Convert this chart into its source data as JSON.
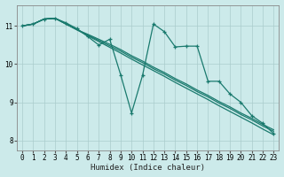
{
  "xlabel": "Humidex (Indice chaleur)",
  "background_color": "#cceaea",
  "grid_color": "#aacccc",
  "line_color": "#1a7a6e",
  "xlim": [
    -0.5,
    23.5
  ],
  "ylim": [
    7.75,
    11.55
  ],
  "yticks": [
    8,
    9,
    10,
    11
  ],
  "xticks": [
    0,
    1,
    2,
    3,
    4,
    5,
    6,
    7,
    8,
    9,
    10,
    11,
    12,
    13,
    14,
    15,
    16,
    17,
    18,
    19,
    20,
    21,
    22,
    23
  ],
  "smooth_lines": [
    {
      "x": [
        0,
        1,
        2,
        3,
        4,
        5,
        6,
        7,
        8,
        9,
        10,
        11,
        12,
        13,
        14,
        15,
        16,
        17,
        18,
        19,
        20,
        21,
        22,
        23
      ],
      "y": [
        11.0,
        11.05,
        11.18,
        11.2,
        11.05,
        10.9,
        10.78,
        10.65,
        10.52,
        10.38,
        10.22,
        10.08,
        9.92,
        9.78,
        9.62,
        9.48,
        9.32,
        9.18,
        9.02,
        8.88,
        8.72,
        8.58,
        8.42,
        8.28
      ]
    },
    {
      "x": [
        0,
        1,
        2,
        3,
        4,
        5,
        6,
        7,
        8,
        9,
        10,
        11,
        12,
        13,
        14,
        15,
        16,
        17,
        18,
        19,
        20,
        21,
        22,
        23
      ],
      "y": [
        11.0,
        11.05,
        11.18,
        11.2,
        11.05,
        10.9,
        10.76,
        10.62,
        10.48,
        10.34,
        10.18,
        10.04,
        9.88,
        9.74,
        9.58,
        9.44,
        9.28,
        9.14,
        8.98,
        8.84,
        8.68,
        8.54,
        8.38,
        8.24
      ]
    },
    {
      "x": [
        0,
        1,
        2,
        3,
        4,
        5,
        6,
        7,
        8,
        9,
        10,
        11,
        12,
        13,
        14,
        15,
        16,
        17,
        18,
        19,
        20,
        21,
        22,
        23
      ],
      "y": [
        11.0,
        11.05,
        11.18,
        11.2,
        11.05,
        10.9,
        10.74,
        10.59,
        10.44,
        10.29,
        10.13,
        9.98,
        9.83,
        9.68,
        9.52,
        9.37,
        9.22,
        9.07,
        8.91,
        8.76,
        8.61,
        8.46,
        8.3,
        8.15
      ]
    }
  ],
  "marker_line": {
    "x": [
      0,
      1,
      2,
      3,
      4,
      5,
      6,
      7,
      8,
      9,
      10,
      11,
      12,
      13,
      14,
      15,
      16,
      17,
      18,
      19,
      20,
      21,
      22,
      23
    ],
    "y": [
      11.0,
      11.05,
      11.18,
      11.2,
      11.08,
      10.93,
      10.72,
      10.5,
      10.65,
      9.72,
      8.72,
      9.7,
      11.05,
      10.85,
      10.45,
      10.47,
      10.47,
      9.55,
      9.55,
      9.22,
      9.0,
      8.65,
      8.45,
      8.18
    ]
  }
}
